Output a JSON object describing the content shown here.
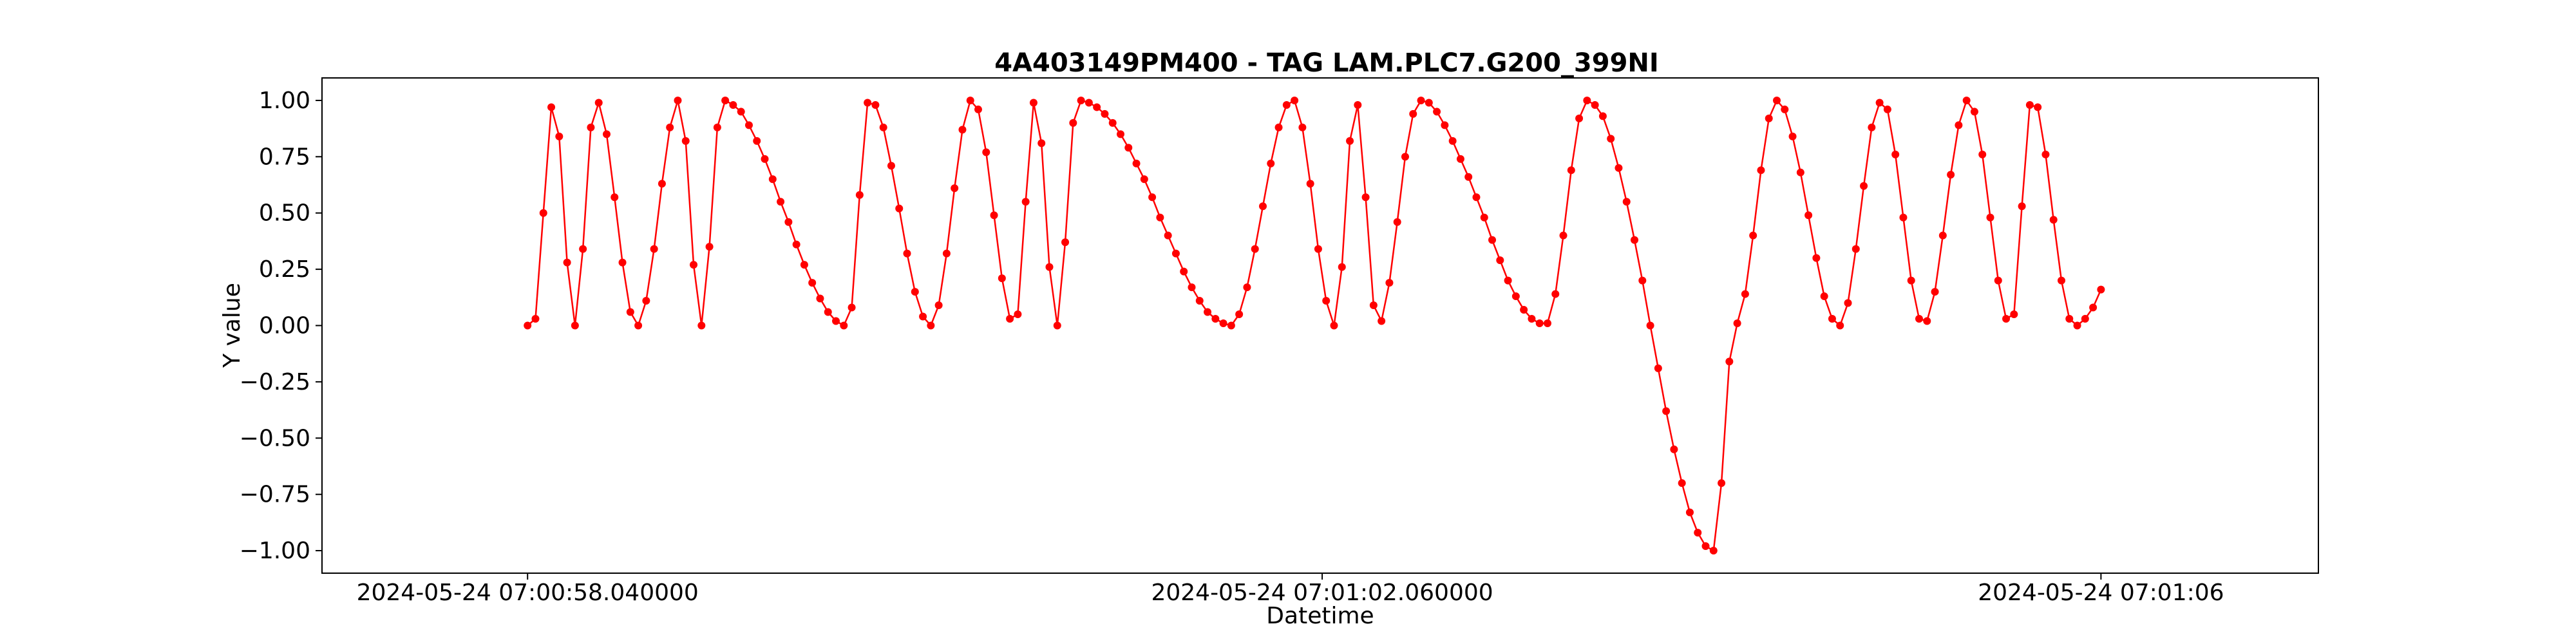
{
  "chart_data": {
    "type": "line",
    "title": "4A403149PM400 - TAG LAM.PLC7.G200_399NI",
    "xlabel": "Datetime",
    "ylabel": "Y value",
    "ylim": [
      -1.1,
      1.1
    ],
    "xlim": [
      "2024-05-24 07:00:57.000000",
      "2024-05-24 07:01:07.100000"
    ],
    "grid": false,
    "x_tick_labels": [
      "2024-05-24 07:00:58.040000",
      "2024-05-24 07:01:02.060000",
      "2024-05-24 07:01:06"
    ],
    "x_tick_values": [
      "2024-05-24 07:00:58.040000",
      "2024-05-24 07:01:02.060000",
      "2024-05-24 07:01:06.000000"
    ],
    "y_ticks": [
      -1.0,
      -0.75,
      -0.5,
      -0.25,
      0.0,
      0.25,
      0.5,
      0.75,
      1.0
    ],
    "y_tick_labels": [
      "−1.00",
      "−0.75",
      "−0.50",
      "−0.25",
      "0.00",
      "0.25",
      "0.50",
      "0.75",
      "1.00"
    ],
    "series": [
      {
        "color": "#ff0000",
        "marker": "circle",
        "x": [
          "2024-05-24 07:00:58.040000",
          "2024-05-24 07:00:58.080000",
          "2024-05-24 07:00:58.120000",
          "2024-05-24 07:00:58.160000",
          "2024-05-24 07:00:58.200000",
          "2024-05-24 07:00:58.240000",
          "2024-05-24 07:00:58.280000",
          "2024-05-24 07:00:58.320000",
          "2024-05-24 07:00:58.360000",
          "2024-05-24 07:00:58.400000",
          "2024-05-24 07:00:58.440000",
          "2024-05-24 07:00:58.480000",
          "2024-05-24 07:00:58.520000",
          "2024-05-24 07:00:58.560000",
          "2024-05-24 07:00:58.600000",
          "2024-05-24 07:00:58.640000",
          "2024-05-24 07:00:58.680000",
          "2024-05-24 07:00:58.720000",
          "2024-05-24 07:00:58.760000",
          "2024-05-24 07:00:58.800000",
          "2024-05-24 07:00:58.840000",
          "2024-05-24 07:00:58.880000",
          "2024-05-24 07:00:58.920000",
          "2024-05-24 07:00:58.960000",
          "2024-05-24 07:00:59.000000",
          "2024-05-24 07:00:59.040000",
          "2024-05-24 07:00:59.080000",
          "2024-05-24 07:00:59.120000",
          "2024-05-24 07:00:59.160000",
          "2024-05-24 07:00:59.200000",
          "2024-05-24 07:00:59.240000",
          "2024-05-24 07:00:59.280000",
          "2024-05-24 07:00:59.320000",
          "2024-05-24 07:00:59.360000",
          "2024-05-24 07:00:59.400000",
          "2024-05-24 07:00:59.440000",
          "2024-05-24 07:00:59.480000",
          "2024-05-24 07:00:59.520000",
          "2024-05-24 07:00:59.560000",
          "2024-05-24 07:00:59.600000",
          "2024-05-24 07:00:59.640000",
          "2024-05-24 07:00:59.680000",
          "2024-05-24 07:00:59.720000",
          "2024-05-24 07:00:59.760000",
          "2024-05-24 07:00:59.800000",
          "2024-05-24 07:00:59.840000",
          "2024-05-24 07:00:59.880000",
          "2024-05-24 07:00:59.920000",
          "2024-05-24 07:00:59.960000",
          "2024-05-24 07:01:00.000000",
          "2024-05-24 07:01:00.040000",
          "2024-05-24 07:01:00.080000",
          "2024-05-24 07:01:00.120000",
          "2024-05-24 07:01:00.160000",
          "2024-05-24 07:01:00.200000",
          "2024-05-24 07:01:00.240000",
          "2024-05-24 07:01:00.280000",
          "2024-05-24 07:01:00.320000",
          "2024-05-24 07:01:00.360000",
          "2024-05-24 07:01:00.400000",
          "2024-05-24 07:01:00.440000",
          "2024-05-24 07:01:00.480000",
          "2024-05-24 07:01:00.520000",
          "2024-05-24 07:01:00.560000",
          "2024-05-24 07:01:00.600000",
          "2024-05-24 07:01:00.640000",
          "2024-05-24 07:01:00.680000",
          "2024-05-24 07:01:00.720000",
          "2024-05-24 07:01:00.760000",
          "2024-05-24 07:01:00.800000",
          "2024-05-24 07:01:00.840000",
          "2024-05-24 07:01:00.880000",
          "2024-05-24 07:01:00.920000",
          "2024-05-24 07:01:00.960000",
          "2024-05-24 07:01:01.000000",
          "2024-05-24 07:01:01.040000",
          "2024-05-24 07:01:01.080000",
          "2024-05-24 07:01:01.120000",
          "2024-05-24 07:01:01.160000",
          "2024-05-24 07:01:01.200000",
          "2024-05-24 07:01:01.240000",
          "2024-05-24 07:01:01.280000",
          "2024-05-24 07:01:01.320000",
          "2024-05-24 07:01:01.360000",
          "2024-05-24 07:01:01.400000",
          "2024-05-24 07:01:01.440000",
          "2024-05-24 07:01:01.480000",
          "2024-05-24 07:01:01.520000",
          "2024-05-24 07:01:01.560000",
          "2024-05-24 07:01:01.600000",
          "2024-05-24 07:01:01.640000",
          "2024-05-24 07:01:01.680000",
          "2024-05-24 07:01:01.720000",
          "2024-05-24 07:01:01.760000",
          "2024-05-24 07:01:01.800000",
          "2024-05-24 07:01:01.840000",
          "2024-05-24 07:01:01.880000",
          "2024-05-24 07:01:01.920000",
          "2024-05-24 07:01:01.960000",
          "2024-05-24 07:01:02.000000",
          "2024-05-24 07:01:02.040000",
          "2024-05-24 07:01:02.080000",
          "2024-05-24 07:01:02.120000",
          "2024-05-24 07:01:02.160000",
          "2024-05-24 07:01:02.200000",
          "2024-05-24 07:01:02.240000",
          "2024-05-24 07:01:02.280000",
          "2024-05-24 07:01:02.320000",
          "2024-05-24 07:01:02.360000",
          "2024-05-24 07:01:02.400000",
          "2024-05-24 07:01:02.440000",
          "2024-05-24 07:01:02.480000",
          "2024-05-24 07:01:02.520000",
          "2024-05-24 07:01:02.560000",
          "2024-05-24 07:01:02.600000",
          "2024-05-24 07:01:02.640000",
          "2024-05-24 07:01:02.680000",
          "2024-05-24 07:01:02.720000",
          "2024-05-24 07:01:02.760000",
          "2024-05-24 07:01:02.800000",
          "2024-05-24 07:01:02.840000",
          "2024-05-24 07:01:02.880000",
          "2024-05-24 07:01:02.920000",
          "2024-05-24 07:01:02.960000",
          "2024-05-24 07:01:03.000000",
          "2024-05-24 07:01:03.040000",
          "2024-05-24 07:01:03.080000",
          "2024-05-24 07:01:03.120000",
          "2024-05-24 07:01:03.160000",
          "2024-05-24 07:01:03.200000",
          "2024-05-24 07:01:03.240000",
          "2024-05-24 07:01:03.280000",
          "2024-05-24 07:01:03.320000",
          "2024-05-24 07:01:03.360000",
          "2024-05-24 07:01:03.400000",
          "2024-05-24 07:01:03.440000",
          "2024-05-24 07:01:03.480000",
          "2024-05-24 07:01:03.520000",
          "2024-05-24 07:01:03.560000",
          "2024-05-24 07:01:03.600000",
          "2024-05-24 07:01:03.640000",
          "2024-05-24 07:01:03.680000",
          "2024-05-24 07:01:03.720000",
          "2024-05-24 07:01:03.760000",
          "2024-05-24 07:01:03.800000",
          "2024-05-24 07:01:03.840000",
          "2024-05-24 07:01:03.880000",
          "2024-05-24 07:01:03.920000",
          "2024-05-24 07:01:03.960000",
          "2024-05-24 07:01:04.000000",
          "2024-05-24 07:01:04.040000",
          "2024-05-24 07:01:04.080000",
          "2024-05-24 07:01:04.120000",
          "2024-05-24 07:01:04.160000",
          "2024-05-24 07:01:04.200000",
          "2024-05-24 07:01:04.240000",
          "2024-05-24 07:01:04.280000",
          "2024-05-24 07:01:04.320000",
          "2024-05-24 07:01:04.360000",
          "2024-05-24 07:01:04.400000",
          "2024-05-24 07:01:04.440000",
          "2024-05-24 07:01:04.480000",
          "2024-05-24 07:01:04.520000",
          "2024-05-24 07:01:04.560000",
          "2024-05-24 07:01:04.600000",
          "2024-05-24 07:01:04.640000",
          "2024-05-24 07:01:04.680000",
          "2024-05-24 07:01:04.720000",
          "2024-05-24 07:01:04.760000",
          "2024-05-24 07:01:04.800000",
          "2024-05-24 07:01:04.840000",
          "2024-05-24 07:01:04.880000",
          "2024-05-24 07:01:04.920000",
          "2024-05-24 07:01:04.960000",
          "2024-05-24 07:01:05.000000",
          "2024-05-24 07:01:05.040000",
          "2024-05-24 07:01:05.080000",
          "2024-05-24 07:01:05.120000",
          "2024-05-24 07:01:05.160000",
          "2024-05-24 07:01:05.200000",
          "2024-05-24 07:01:05.240000",
          "2024-05-24 07:01:05.280000",
          "2024-05-24 07:01:05.320000",
          "2024-05-24 07:01:05.360000",
          "2024-05-24 07:01:05.400000",
          "2024-05-24 07:01:05.440000",
          "2024-05-24 07:01:05.480000",
          "2024-05-24 07:01:05.520000",
          "2024-05-24 07:01:05.560000",
          "2024-05-24 07:01:05.600000",
          "2024-05-24 07:01:05.640000",
          "2024-05-24 07:01:05.680000",
          "2024-05-24 07:01:05.720000",
          "2024-05-24 07:01:05.760000",
          "2024-05-24 07:01:05.800000",
          "2024-05-24 07:01:05.840000",
          "2024-05-24 07:01:05.880000",
          "2024-05-24 07:01:05.920000",
          "2024-05-24 07:01:05.960000",
          "2024-05-24 07:01:06.000000"
        ],
        "y": [
          0.0,
          0.03,
          0.5,
          0.97,
          0.84,
          0.28,
          0.0,
          0.34,
          0.88,
          0.99,
          0.85,
          0.57,
          0.28,
          0.06,
          0.0,
          0.11,
          0.34,
          0.63,
          0.88,
          1.0,
          0.82,
          0.27,
          0.0,
          0.35,
          0.88,
          1.0,
          0.98,
          0.95,
          0.89,
          0.82,
          0.74,
          0.65,
          0.55,
          0.46,
          0.36,
          0.27,
          0.19,
          0.12,
          0.06,
          0.02,
          0.0,
          0.08,
          0.58,
          0.99,
          0.98,
          0.88,
          0.71,
          0.52,
          0.32,
          0.15,
          0.04,
          0.0,
          0.09,
          0.32,
          0.61,
          0.87,
          1.0,
          0.96,
          0.77,
          0.49,
          0.21,
          0.03,
          0.05,
          0.55,
          0.99,
          0.81,
          0.26,
          0.0,
          0.37,
          0.9,
          1.0,
          0.99,
          0.97,
          0.94,
          0.9,
          0.85,
          0.79,
          0.72,
          0.65,
          0.57,
          0.48,
          0.4,
          0.32,
          0.24,
          0.17,
          0.11,
          0.06,
          0.03,
          0.01,
          0.0,
          0.05,
          0.17,
          0.34,
          0.53,
          0.72,
          0.88,
          0.98,
          1.0,
          0.88,
          0.63,
          0.34,
          0.11,
          0.0,
          0.26,
          0.82,
          0.98,
          0.57,
          0.09,
          0.02,
          0.19,
          0.46,
          0.75,
          0.94,
          1.0,
          0.99,
          0.95,
          0.89,
          0.82,
          0.74,
          0.66,
          0.57,
          0.48,
          0.38,
          0.29,
          0.2,
          0.13,
          0.07,
          0.03,
          0.01,
          0.01,
          0.14,
          0.4,
          0.69,
          0.92,
          1.0,
          0.98,
          0.93,
          0.83,
          0.7,
          0.55,
          0.38,
          0.2,
          0.0,
          -0.19,
          -0.38,
          -0.55,
          -0.7,
          -0.83,
          -0.92,
          -0.98,
          -1.0,
          -0.7,
          -0.16,
          0.01,
          0.14,
          0.4,
          0.69,
          0.92,
          1.0,
          0.96,
          0.84,
          0.68,
          0.49,
          0.3,
          0.13,
          0.03,
          0.0,
          0.1,
          0.34,
          0.62,
          0.88,
          0.99,
          0.96,
          0.76,
          0.48,
          0.2,
          0.03,
          0.02,
          0.15,
          0.4,
          0.67,
          0.89,
          1.0,
          0.95,
          0.76,
          0.48,
          0.2,
          0.03,
          0.05,
          0.53,
          0.98,
          0.97,
          0.76,
          0.47,
          0.2,
          0.03,
          0.0,
          0.03,
          0.08,
          0.16
        ]
      }
    ]
  }
}
